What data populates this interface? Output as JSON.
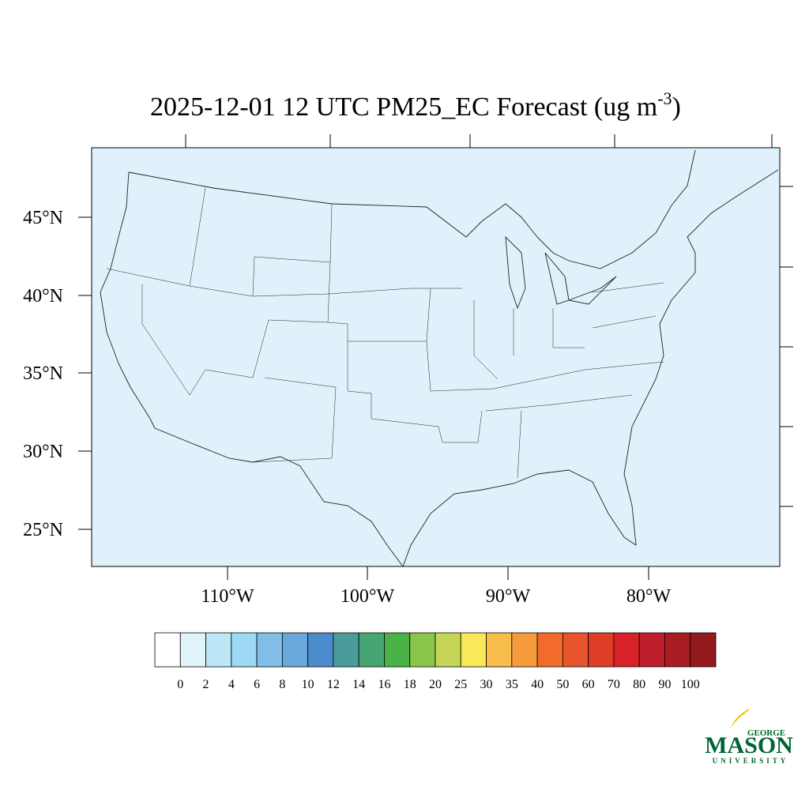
{
  "title": {
    "main": "2025-12-01 12 UTC PM25_EC Forecast (ug m",
    "superscript": "-3",
    "close": ")"
  },
  "map": {
    "latitude_labels": [
      "45°N",
      "40°N",
      "35°N",
      "30°N",
      "25°N"
    ],
    "longitude_labels": [
      "110°W",
      "100°W",
      "90°W",
      "80°W"
    ],
    "background_color": "#dff2fb"
  },
  "colorbar": {
    "colors": [
      "#ffffff",
      "#e0f3fb",
      "#bde6f7",
      "#9dd8f4",
      "#80bde7",
      "#68a8dc",
      "#4a8bcb",
      "#4a9b9c",
      "#47a473",
      "#4ab346",
      "#8ac64a",
      "#c5d656",
      "#f9e858",
      "#f8bd4a",
      "#f69a3b",
      "#f36b2b",
      "#e8542c",
      "#df3d28",
      "#d82228",
      "#bf1e2d",
      "#a91c22",
      "#931a1d"
    ],
    "labels": [
      0,
      2,
      4,
      6,
      8,
      10,
      12,
      14,
      16,
      18,
      20,
      25,
      30,
      35,
      40,
      50,
      60,
      70,
      80,
      90,
      100
    ]
  },
  "logo": {
    "top": "GEORGE",
    "main": "MASON",
    "bottom": "UNIVERSITY"
  }
}
